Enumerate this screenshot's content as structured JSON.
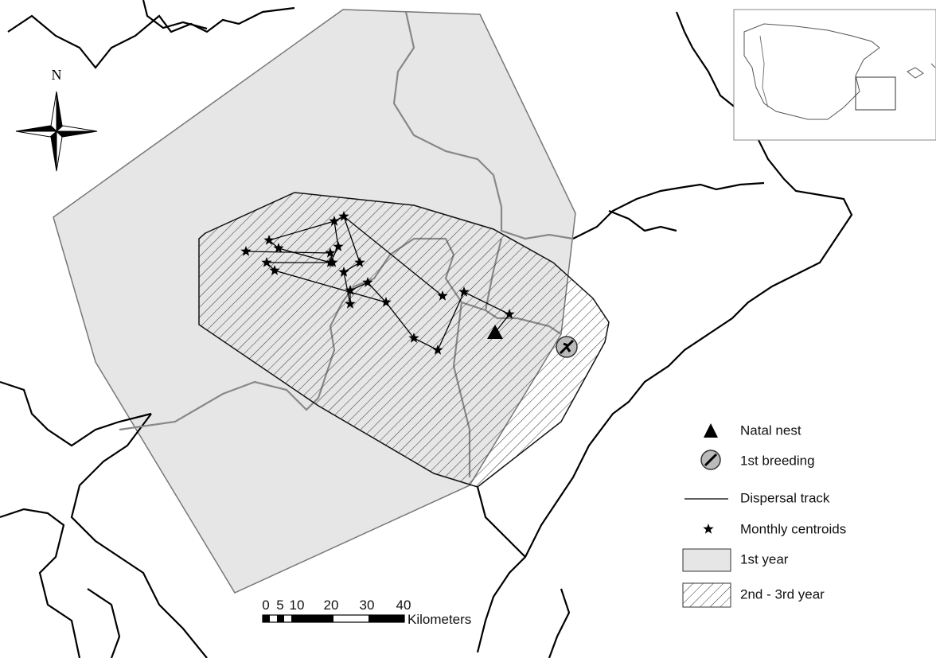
{
  "north_label": "N",
  "legend": [
    {
      "label": "Natal nest"
    },
    {
      "label": "1st breeding"
    },
    {
      "label": "Dispersal track"
    },
    {
      "label": "Monthly centroids"
    },
    {
      "label": "1st year"
    },
    {
      "label": "2nd - 3rd year"
    }
  ],
  "scale_bar": {
    "ticks": [
      "0",
      "5",
      "10",
      "20",
      "30",
      "40"
    ],
    "unit": "Kilometers"
  }
}
